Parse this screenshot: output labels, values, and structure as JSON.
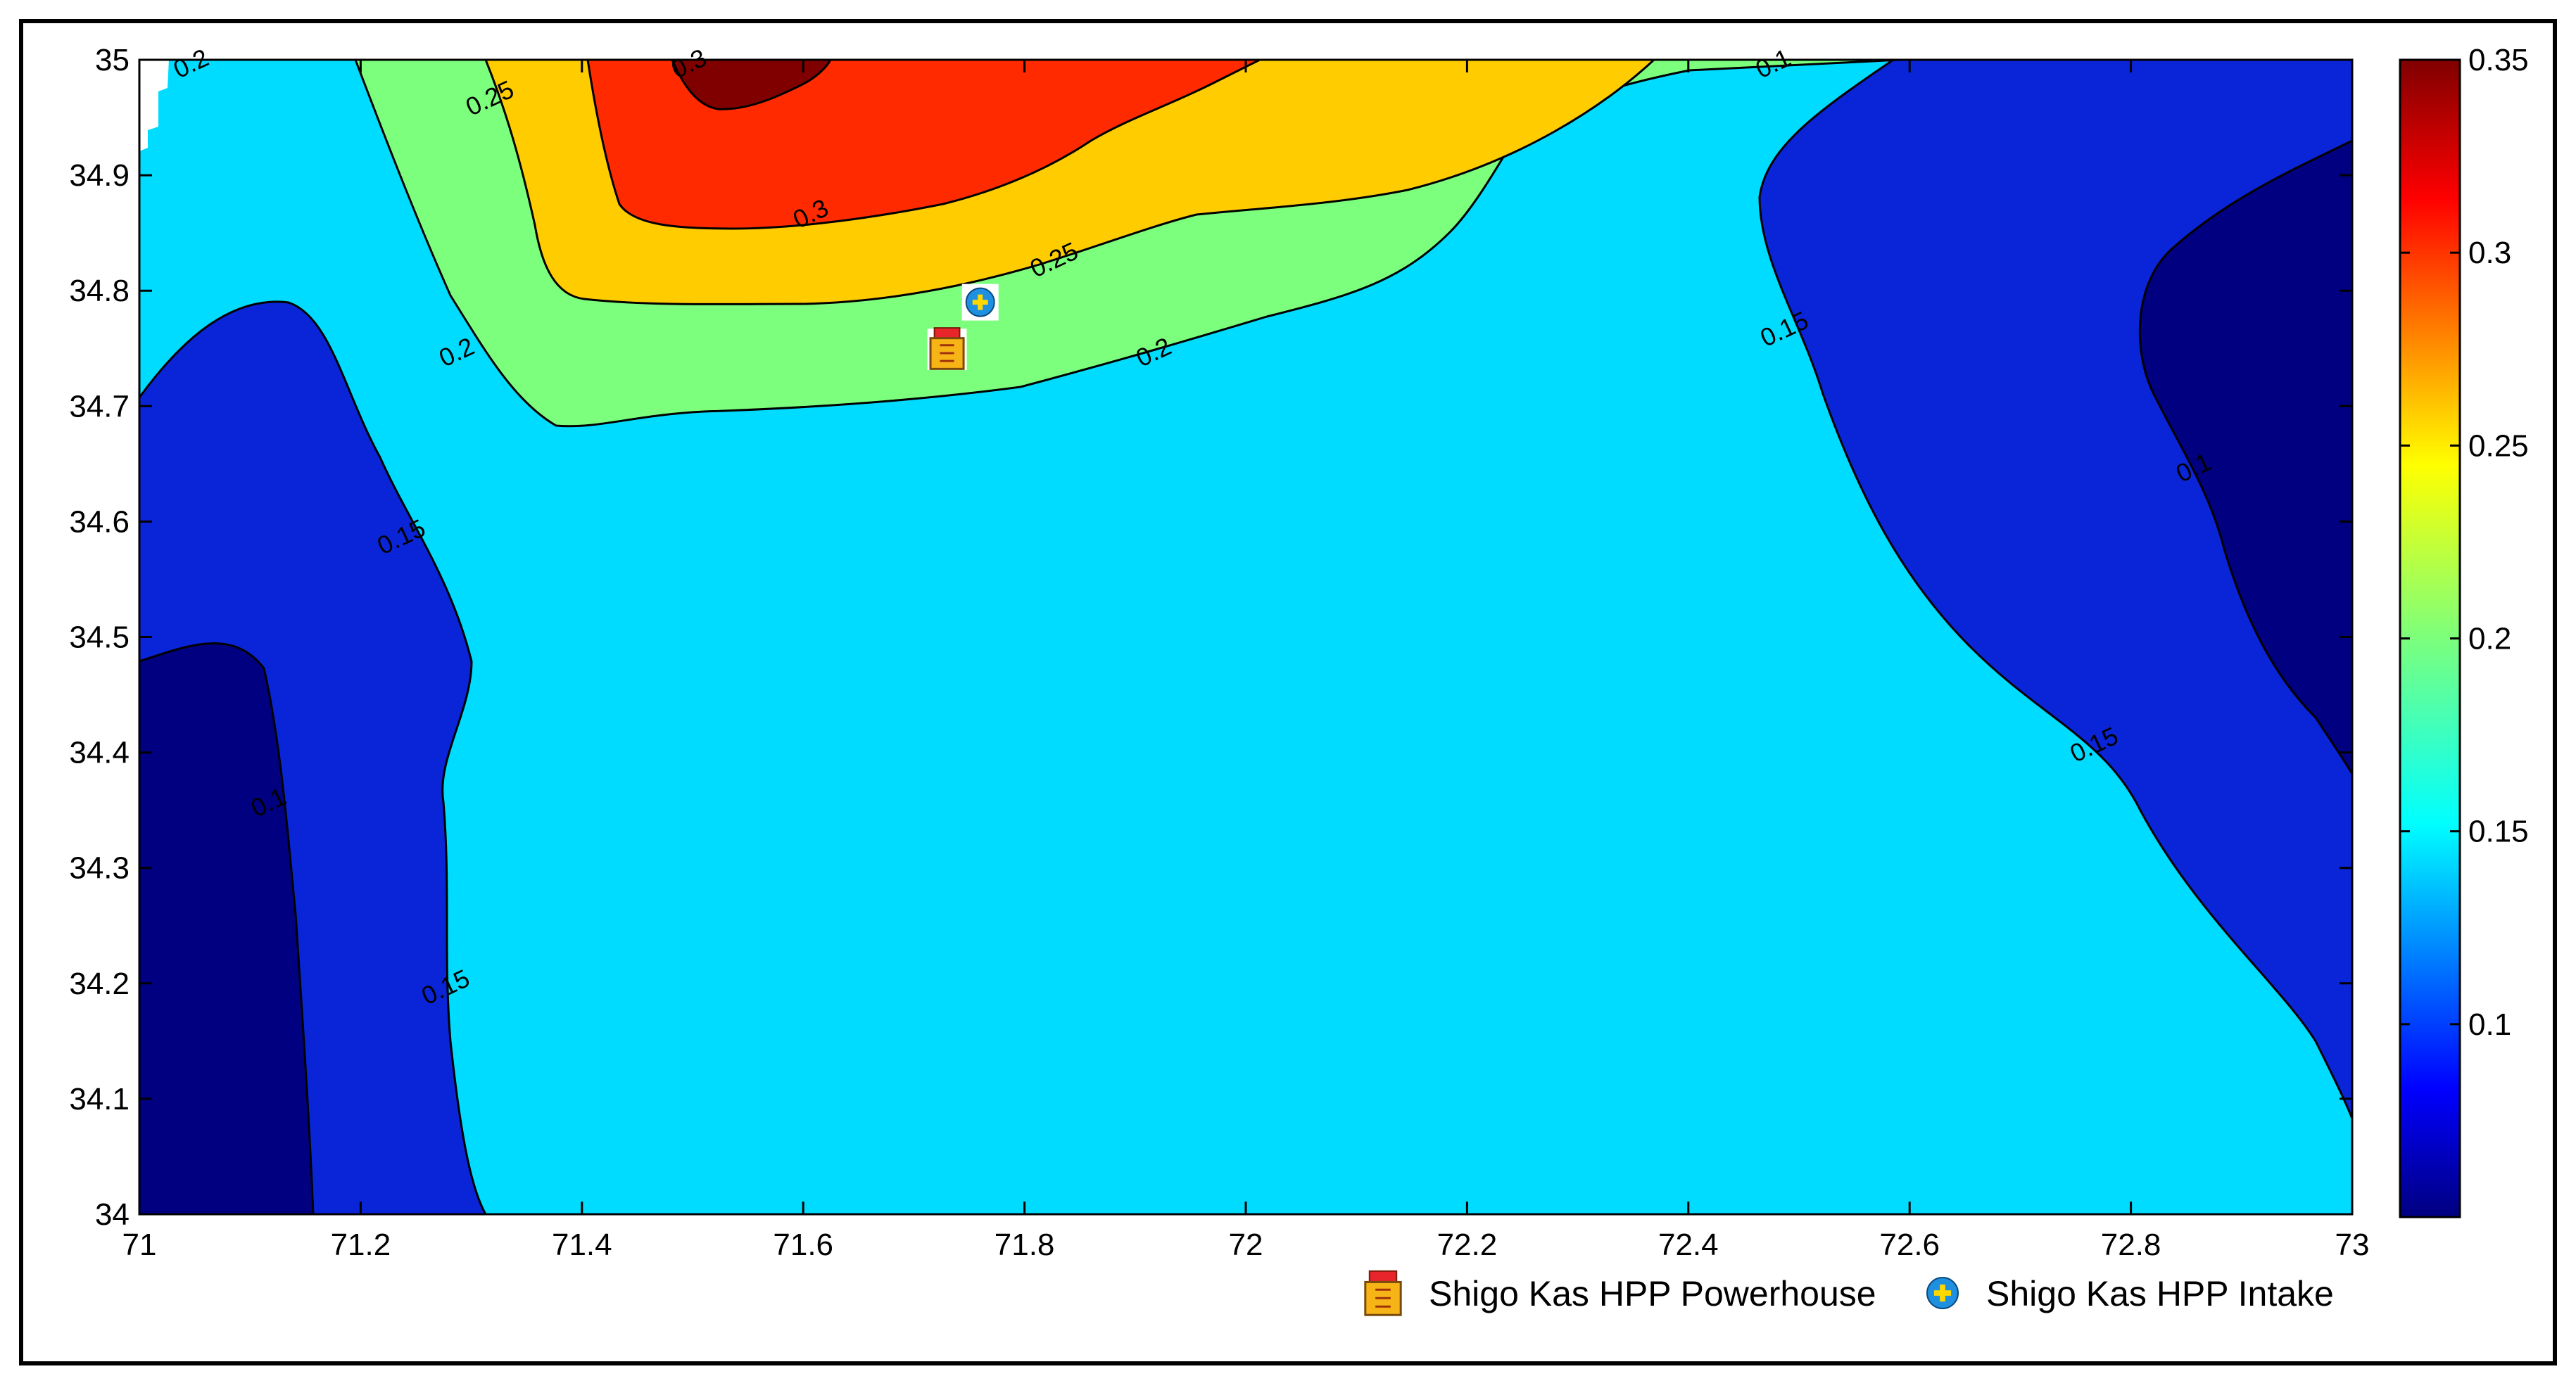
{
  "chart_data": {
    "type": "contour",
    "title": "",
    "xlabel": "",
    "ylabel": "",
    "xlim": [
      71,
      73
    ],
    "ylim": [
      34,
      35
    ],
    "x_ticks": [
      "71",
      "71.2",
      "71.4",
      "71.6",
      "71.8",
      "72",
      "72.2",
      "72.4",
      "72.6",
      "72.8",
      "73"
    ],
    "y_ticks": [
      "34",
      "34.1",
      "34.2",
      "34.3",
      "34.4",
      "34.5",
      "34.6",
      "34.7",
      "34.8",
      "34.9",
      "35"
    ],
    "colorbar": {
      "range": [
        0.05,
        0.35
      ],
      "ticks": [
        "0.1",
        "0.15",
        "0.2",
        "0.25",
        "0.3",
        "0.35"
      ],
      "colormap": "jet"
    },
    "levels": [
      0.1,
      0.15,
      0.2,
      0.25,
      0.3,
      0.35
    ],
    "band_colors": {
      "below_0.1": "#000080",
      "0.1_0.15": "#0a25d8",
      "0.15_0.2": "#00dcff",
      "0.2_0.25": "#7cff7c",
      "0.25_0.3": "#ffcc00",
      "0.3_0.35": "#ff2a00",
      "above_0.35": "#800000"
    },
    "contour_labels": [
      {
        "text": "0.25",
        "x": 71.32,
        "y": 34.96
      },
      {
        "text": "0.3",
        "x": 71.61,
        "y": 34.86
      },
      {
        "text": "0.25",
        "x": 71.83,
        "y": 34.82
      },
      {
        "text": "0.2",
        "x": 71.29,
        "y": 34.74
      },
      {
        "text": "0.2",
        "x": 71.92,
        "y": 34.74
      },
      {
        "text": "0.15",
        "x": 71.24,
        "y": 34.58
      },
      {
        "text": "0.1",
        "x": 71.12,
        "y": 34.35
      },
      {
        "text": "0.15",
        "x": 71.28,
        "y": 34.19
      },
      {
        "text": "0.15",
        "x": 72.49,
        "y": 34.76
      },
      {
        "text": "0.1",
        "x": 72.86,
        "y": 34.64
      },
      {
        "text": "0.15",
        "x": 72.77,
        "y": 34.4
      },
      {
        "text": "0.3",
        "x": 71.5,
        "y": 34.99
      },
      {
        "text": "0.2",
        "x": 71.05,
        "y": 34.99
      },
      {
        "text": "0.1",
        "x": 72.48,
        "y": 34.99
      }
    ],
    "markers": [
      {
        "name": "Shigo Kas HPP Powerhouse",
        "x": 71.73,
        "y": 34.75,
        "icon": "powerhouse-icon"
      },
      {
        "name": "Shigo Kas HPP Intake",
        "x": 71.76,
        "y": 34.79,
        "icon": "intake-icon"
      }
    ],
    "legend": {
      "position": "bottom-right",
      "items": [
        "Shigo Kas HPP Powerhouse",
        "Shigo Kas HPP Intake"
      ]
    }
  }
}
